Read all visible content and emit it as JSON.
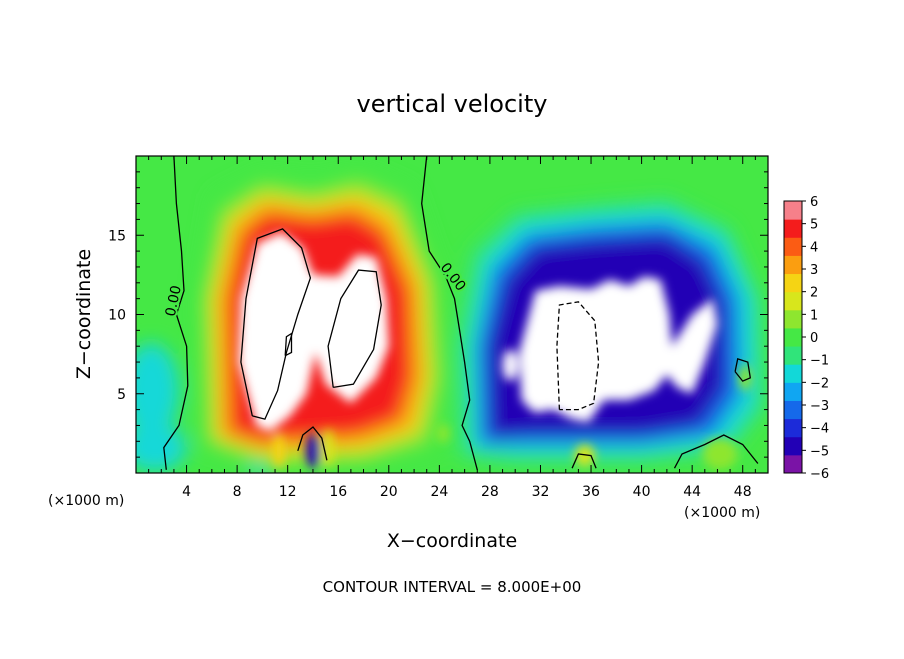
{
  "chart_data": {
    "type": "heatmap",
    "title": "vertical velocity",
    "xlabel": "X−coordinate",
    "ylabel": "Z−coordinate",
    "x_unit_label": "(×1000 m)",
    "x_unit_label_right": "(×1000 m)",
    "xlim": [
      0,
      50
    ],
    "ylim": [
      0,
      20
    ],
    "x_ticks": [
      4,
      8,
      12,
      16,
      20,
      24,
      28,
      32,
      36,
      40,
      44,
      48
    ],
    "x_tick_labels": [
      "4",
      "8",
      "12",
      "16",
      "20",
      "24",
      "28",
      "32",
      "36",
      "40",
      "44",
      "48"
    ],
    "y_ticks": [
      5,
      10,
      15
    ],
    "y_tick_labels": [
      "5",
      "10",
      "15"
    ],
    "colorbar": {
      "min": -6,
      "max": 6,
      "ticks": [
        6,
        5,
        4,
        3,
        2,
        1,
        0,
        -1,
        -2,
        -3,
        -4,
        -5,
        -6
      ],
      "tick_labels": [
        "6",
        "5",
        "4",
        "3",
        "2",
        "1",
        "0",
        "−1",
        "−2",
        "−3",
        "−4",
        "−5",
        "−6"
      ],
      "colors": [
        "#7a13a6",
        "#2200b5",
        "#1c2bd9",
        "#1569ea",
        "#10a6f2",
        "#12d8d8",
        "#30e47a",
        "#45e845",
        "#8ee62f",
        "#d8e61c",
        "#f5d414",
        "#fb9e10",
        "#fb5c14",
        "#f41c1c",
        "#f6808a"
      ]
    },
    "contour_labels": [
      "0.00",
      "0.00"
    ],
    "regions": [
      {
        "kind": "updraft",
        "x_range": [
          6,
          24
        ],
        "z_range": [
          0.5,
          18
        ],
        "peak_value": 6,
        "note": "values above colorbar max shown white"
      },
      {
        "kind": "downdraft",
        "x_range": [
          26,
          48
        ],
        "z_range": [
          0.5,
          17
        ],
        "peak_value": -6,
        "note": "values below colorbar min shown white"
      }
    ],
    "grid": false,
    "legend_position": "right"
  },
  "footer": {
    "contour_interval": "CONTOUR INTERVAL = 8.000E+00"
  }
}
